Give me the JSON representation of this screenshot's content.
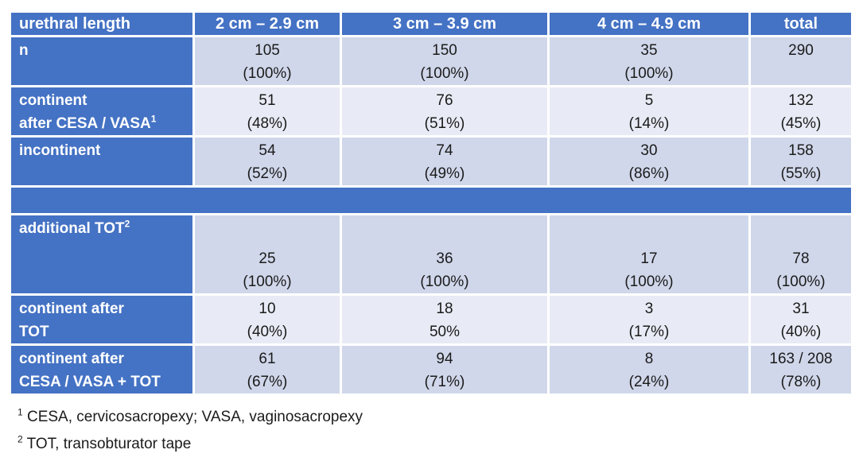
{
  "table": {
    "headers": [
      "urethral length",
      "2 cm – 2.9 cm",
      "3 cm – 3.9 cm",
      "4 cm – 4.9 cm",
      "total"
    ],
    "rows": [
      {
        "label": [
          "n",
          ""
        ],
        "label_sup": "",
        "cells": [
          [
            "105",
            "(100%)"
          ],
          [
            "150",
            "(100%)"
          ],
          [
            "35",
            "(100%)"
          ],
          [
            "290",
            ""
          ]
        ]
      },
      {
        "label": [
          "continent",
          "after CESA / VASA"
        ],
        "label_sup": "1",
        "cells": [
          [
            "51",
            "(48%)"
          ],
          [
            "76",
            "(51%)"
          ],
          [
            "5",
            "(14%)"
          ],
          [
            "132",
            "(45%)"
          ]
        ]
      },
      {
        "label": [
          "incontinent",
          ""
        ],
        "label_sup": "",
        "cells": [
          [
            "54",
            "(52%)"
          ],
          [
            "74",
            "(49%)"
          ],
          [
            "30",
            "(86%)"
          ],
          [
            "158",
            "(55%)"
          ]
        ]
      }
    ],
    "rows2": [
      {
        "label": [
          "additional TOT",
          ""
        ],
        "label_sup": "2",
        "cells": [
          [
            "25",
            "(100%)"
          ],
          [
            "36",
            "(100%)"
          ],
          [
            "17",
            "(100%)"
          ],
          [
            "78",
            "(100%)"
          ]
        ]
      },
      {
        "label": [
          "continent after",
          "TOT"
        ],
        "label_sup": "",
        "cells": [
          [
            "10",
            "(40%)"
          ],
          [
            "18",
            "50%"
          ],
          [
            "3",
            "(17%)"
          ],
          [
            "31",
            "(40%)"
          ]
        ]
      },
      {
        "label": [
          "continent after",
          "CESA / VASA + TOT"
        ],
        "label_sup": "",
        "cells": [
          [
            "61",
            "(67%)"
          ],
          [
            "94",
            "(71%)"
          ],
          [
            "8",
            "(24%)"
          ],
          [
            "163 / 208",
            "(78%)"
          ]
        ]
      }
    ]
  },
  "footnotes": [
    {
      "sup": "1",
      "text": " CESA, cervicosacropexy; VASA, vaginosacropexy"
    },
    {
      "sup": "2",
      "text": " TOT, transobturator tape"
    }
  ],
  "colors": {
    "header": "#4472c4",
    "band_dark": "#d0d7ea",
    "band_light": "#e8ebf5"
  }
}
